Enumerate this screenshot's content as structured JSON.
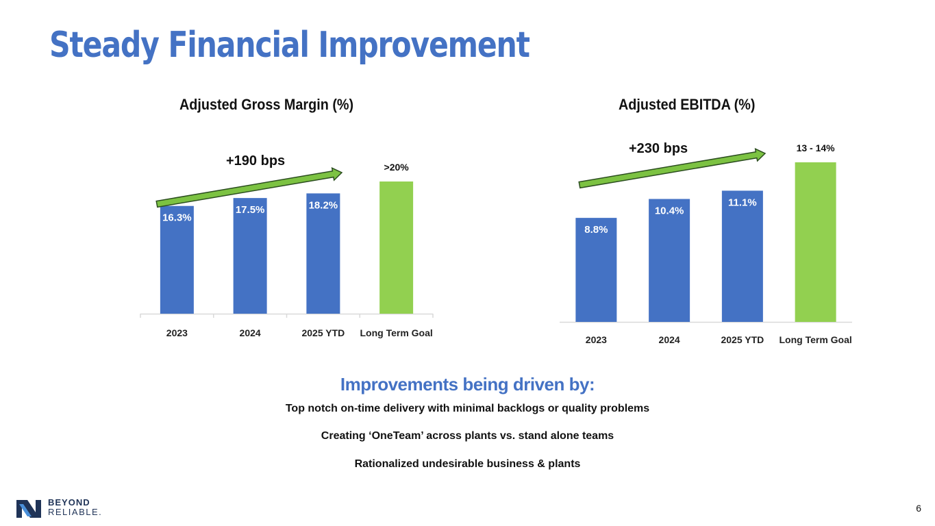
{
  "title": "Steady Financial Improvement",
  "colors": {
    "title": "#4472c4",
    "bar": "#4472c4",
    "goal_bar": "#92d050",
    "arrow_fill": "#7cc242",
    "arrow_stroke": "#2b4d1f",
    "axis": "#d9d9d9",
    "logo_dark": "#1f3357",
    "logo_blue": "#4a8fd9"
  },
  "chart_data": [
    {
      "type": "bar",
      "title": "Adjusted Gross Margin (%)",
      "categories": [
        "2023",
        "2024",
        "2025 YTD",
        "Long Term Goal"
      ],
      "values": [
        16.3,
        17.5,
        18.2,
        20
      ],
      "value_labels": [
        "16.3%",
        "17.5%",
        "18.2%",
        ">20%"
      ],
      "highlight_index": 3,
      "annotation": "+190 bps",
      "ylim": [
        0,
        22
      ]
    },
    {
      "type": "bar",
      "title": "Adjusted EBITDA (%)",
      "categories": [
        "2023",
        "2024",
        "2025 YTD",
        "Long Term Goal"
      ],
      "values": [
        8.8,
        10.4,
        11.1,
        13.5
      ],
      "value_labels": [
        "8.8%",
        "10.4%",
        "11.1%",
        "13 - 14%"
      ],
      "highlight_index": 3,
      "annotation": "+230 bps",
      "ylim": [
        0,
        14
      ]
    }
  ],
  "drivers": {
    "heading": "Improvements being driven by:",
    "items": [
      "Top notch on-time delivery with minimal backlogs or quality problems",
      "Creating ‘OneTeam’ across plants vs. stand alone teams",
      "Rationalized undesirable business & plants"
    ]
  },
  "logo": {
    "line1": "BEYOND",
    "line2": "RELIABLE."
  },
  "page_number": "6"
}
